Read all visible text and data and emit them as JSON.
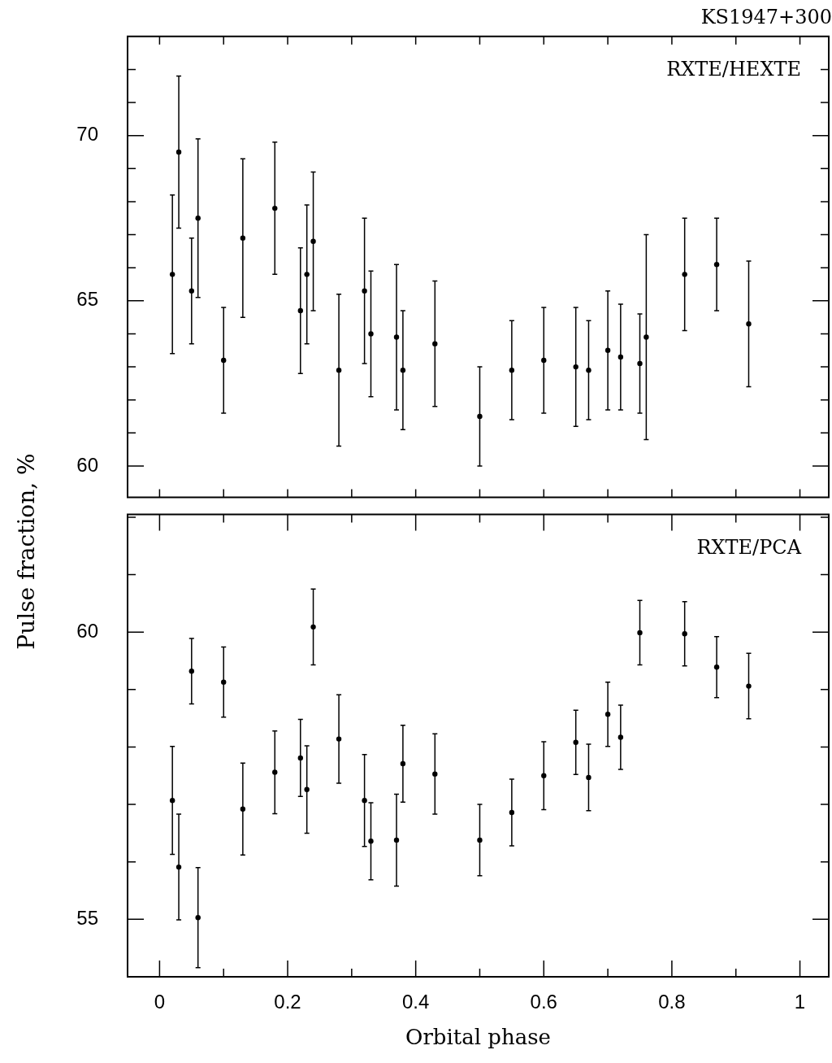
{
  "chart_data": [
    {
      "type": "scatter",
      "title": "KS1947+300",
      "ylabel": "Pulse fraction, %",
      "annotations": [
        "RXTE/HEXTE"
      ],
      "marker": "circle",
      "tick_labels": "y",
      "x": [
        0.02,
        0.03,
        0.05,
        0.06,
        0.1,
        0.13,
        0.18,
        0.22,
        0.23,
        0.24,
        0.28,
        0.32,
        0.33,
        0.37,
        0.38,
        0.43,
        0.5,
        0.55,
        0.6,
        0.65,
        0.67,
        0.7,
        0.72,
        0.75,
        0.76,
        0.82,
        0.87,
        0.92
      ],
      "values": [
        65.8,
        69.5,
        65.3,
        67.5,
        63.2,
        66.9,
        67.8,
        64.7,
        65.8,
        66.8,
        62.9,
        65.3,
        64.0,
        63.9,
        62.9,
        63.7,
        61.5,
        62.9,
        63.2,
        63.0,
        62.9,
        63.5,
        63.3,
        63.1,
        63.9,
        65.8,
        66.1,
        64.3
      ],
      "errors": [
        2.4,
        2.3,
        1.6,
        2.4,
        1.6,
        2.4,
        2.0,
        1.9,
        2.1,
        2.1,
        2.3,
        2.2,
        1.9,
        2.2,
        1.8,
        1.9,
        1.5,
        1.5,
        1.6,
        1.8,
        1.5,
        1.8,
        1.6,
        1.5,
        3.1,
        1.7,
        1.4,
        1.9
      ],
      "color": "#000000",
      "xlim": [
        -0.05,
        1.045
      ],
      "xticks": [
        {
          "value": 0,
          "label": null
        },
        {
          "value": 0.1,
          "label": null
        },
        {
          "value": 0.2,
          "label": null
        },
        {
          "value": 0.3,
          "label": null
        },
        {
          "value": 0.4,
          "label": null
        },
        {
          "value": 0.5,
          "label": null
        },
        {
          "value": 0.6,
          "label": null
        },
        {
          "value": 0.7,
          "label": null
        },
        {
          "value": 0.8,
          "label": null
        },
        {
          "value": 0.9,
          "label": null
        },
        {
          "value": 1,
          "label": null
        }
      ],
      "ylim": [
        59.05,
        73
      ],
      "yticks": [
        60,
        {
          "value": 61,
          "label": null
        },
        {
          "value": 62,
          "label": null
        },
        {
          "value": 63,
          "label": null
        },
        {
          "value": 64,
          "label": null
        },
        65,
        {
          "value": 66,
          "label": null
        },
        {
          "value": 67,
          "label": null
        },
        {
          "value": 68,
          "label": null
        },
        {
          "value": 69,
          "label": null
        },
        70,
        {
          "value": 71,
          "label": null
        },
        {
          "value": 72,
          "label": null
        }
      ]
    },
    {
      "type": "scatter",
      "xlabel": "Orbital phase",
      "annotations": [
        "RXTE/PCA"
      ],
      "marker": "circle",
      "x": [
        0.02,
        0.03,
        0.05,
        0.06,
        0.1,
        0.13,
        0.18,
        0.22,
        0.23,
        0.24,
        0.28,
        0.32,
        0.33,
        0.37,
        0.38,
        0.43,
        0.5,
        0.55,
        0.6,
        0.65,
        0.67,
        0.7,
        0.72,
        0.75,
        0.82,
        0.87,
        0.92
      ],
      "values": [
        57.07,
        55.91,
        59.32,
        55.03,
        59.13,
        56.92,
        57.56,
        57.81,
        57.26,
        60.09,
        58.14,
        57.07,
        56.36,
        56.38,
        57.71,
        57.53,
        56.38,
        56.86,
        57.5,
        58.08,
        57.47,
        58.57,
        58.17,
        59.99,
        59.97,
        59.39,
        59.06
      ],
      "errors": [
        0.94,
        0.92,
        0.57,
        0.87,
        0.61,
        0.8,
        0.72,
        0.67,
        0.76,
        0.66,
        0.77,
        0.8,
        0.67,
        0.8,
        0.67,
        0.7,
        0.62,
        0.58,
        0.59,
        0.56,
        0.58,
        0.56,
        0.56,
        0.56,
        0.56,
        0.53,
        0.57
      ],
      "color": "#000000",
      "xlim": [
        -0.05,
        1.045
      ],
      "xticks": [
        {
          "value": 0,
          "label": "0"
        },
        {
          "value": 0.1,
          "label": null
        },
        {
          "value": 0.2,
          "label": "0.2"
        },
        {
          "value": 0.3,
          "label": null
        },
        {
          "value": 0.4,
          "label": "0.4"
        },
        {
          "value": 0.5,
          "label": null
        },
        {
          "value": 0.6,
          "label": "0.6"
        },
        {
          "value": 0.7,
          "label": null
        },
        {
          "value": 0.8,
          "label": "0.8"
        },
        {
          "value": 0.9,
          "label": null
        },
        {
          "value": 1,
          "label": "1"
        }
      ],
      "ylim": [
        54,
        62.05
      ],
      "yticks": [
        55,
        {
          "value": 56,
          "label": null
        },
        {
          "value": 57,
          "label": null
        },
        {
          "value": 58,
          "label": null
        },
        {
          "value": 59,
          "label": null
        },
        60,
        {
          "value": 61,
          "label": null
        },
        {
          "value": 62,
          "label": null
        }
      ]
    }
  ]
}
